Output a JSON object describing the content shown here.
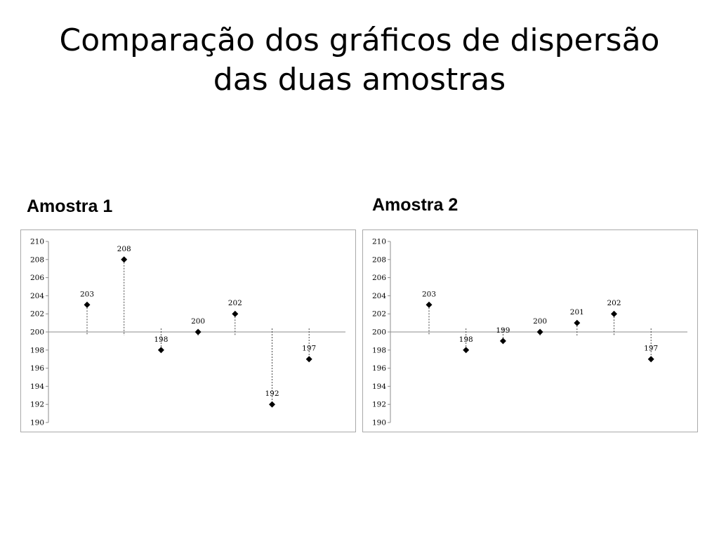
{
  "title": "Comparação dos gráficos de dispersão das duas amostras",
  "panels": [
    {
      "label": "Amostra 1"
    },
    {
      "label": "Amostra 2"
    }
  ],
  "chart_data": [
    {
      "type": "scatter",
      "title": "",
      "xlabel": "",
      "ylabel": "",
      "ylim": [
        190,
        210
      ],
      "yticks": [
        190,
        192,
        194,
        196,
        198,
        200,
        202,
        204,
        206,
        208,
        210
      ],
      "baseline": 200,
      "drop_lines": true,
      "marker": "diamond",
      "grid": false,
      "x": [
        1,
        2,
        3,
        4,
        5,
        6,
        7
      ],
      "values": [
        203,
        208,
        198,
        200,
        202,
        192,
        197
      ],
      "data_labels": [
        "203",
        "208",
        "198",
        "200",
        "202",
        "192",
        "197"
      ]
    },
    {
      "type": "scatter",
      "title": "",
      "xlabel": "",
      "ylabel": "",
      "ylim": [
        190,
        210
      ],
      "yticks": [
        190,
        192,
        194,
        196,
        198,
        200,
        202,
        204,
        206,
        208,
        210
      ],
      "baseline": 200,
      "drop_lines": true,
      "marker": "diamond",
      "grid": false,
      "x": [
        1,
        2,
        3,
        4,
        5,
        6,
        7
      ],
      "values": [
        203,
        198,
        199,
        200,
        201,
        202,
        197
      ],
      "data_labels": [
        "203",
        "198",
        "199",
        "200",
        "201",
        "202",
        "197"
      ]
    }
  ]
}
